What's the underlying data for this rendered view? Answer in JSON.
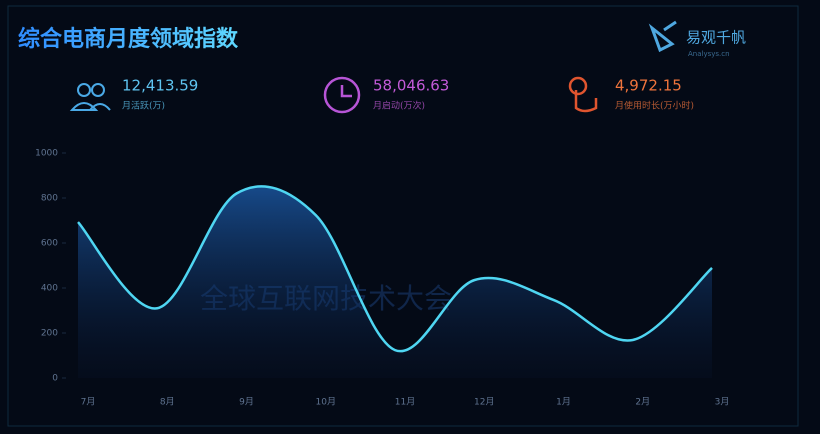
{
  "header": {
    "title": "综合电商月度领域指数",
    "logo": "易观千帆",
    "logo_sub": "Analysys.cn"
  },
  "stats": [
    {
      "value": "12,413.59",
      "label": "月活跃(万)",
      "color": "#5fc4f0"
    },
    {
      "value": "58,046.63",
      "label": "月启动(万次)",
      "color": "#c35ad8"
    },
    {
      "value": "4,972.15",
      "label": "月使用时长(万小时)",
      "color": "#f0743c"
    }
  ],
  "watermark": "全球互联网技术大会",
  "chart_data": {
    "type": "line",
    "categories": [
      "7月",
      "8月",
      "9月",
      "10月",
      "11月",
      "12月",
      "1月",
      "2月",
      "3月"
    ],
    "values": [
      693,
      310,
      820,
      724,
      124,
      435,
      347,
      169,
      489
    ],
    "color": "#4fd6f2",
    "ylim": [
      0,
      1000
    ],
    "yticks": [
      0,
      200,
      400,
      600,
      800,
      1000
    ],
    "grid": false
  }
}
